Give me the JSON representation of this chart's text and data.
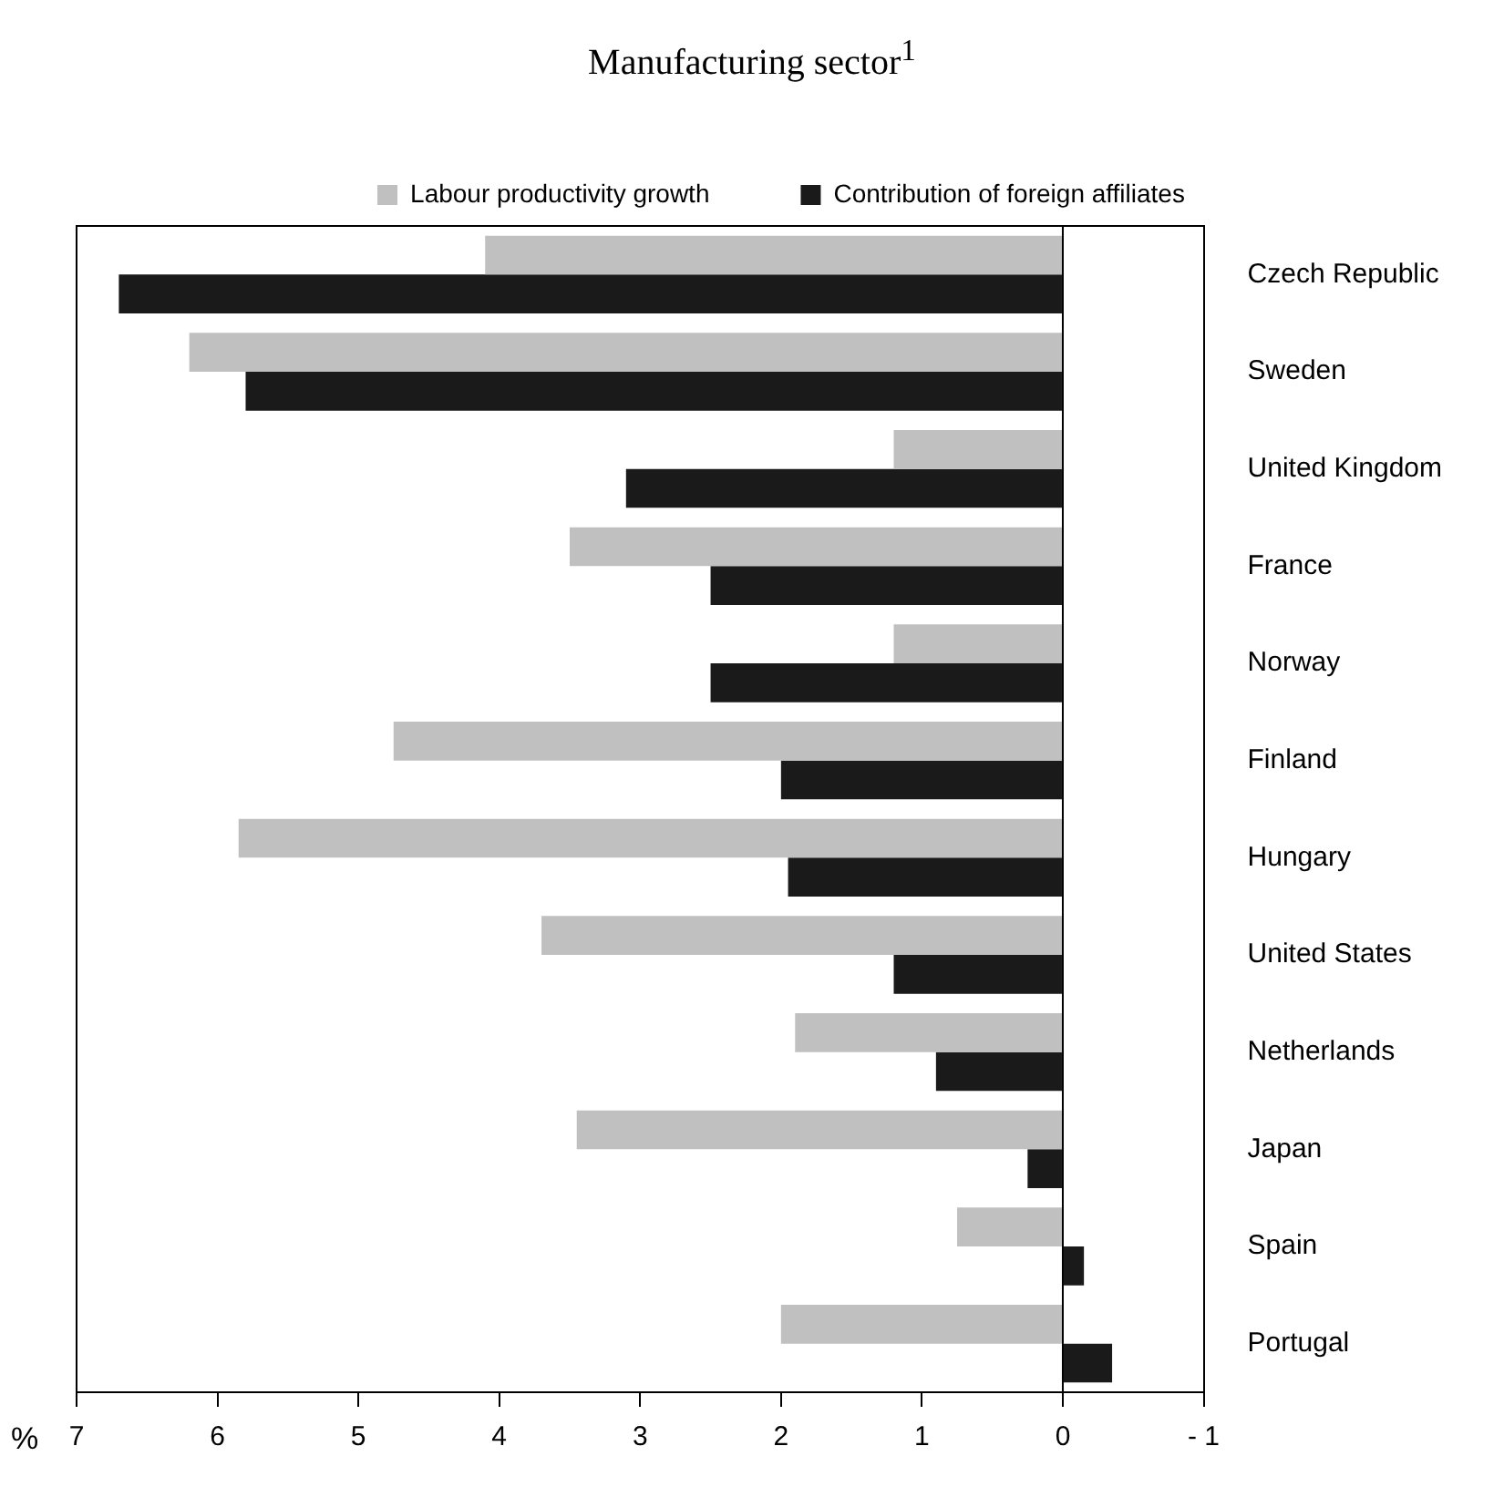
{
  "chart_data": {
    "type": "bar",
    "orientation": "horizontal",
    "title": "Manufacturing sector$^{1}$",
    "xlabel": "%",
    "categories": [
      "Czech Republic",
      "Sweden",
      "United Kingdom",
      "France",
      "Norway",
      "Finland",
      "Hungary",
      "United States",
      "Netherlands",
      "Japan",
      "Spain",
      "Portugal"
    ],
    "series": [
      {
        "name": "Labour productivity growth",
        "color": "#c0c0c0",
        "values": [
          4.1,
          6.2,
          1.2,
          3.5,
          1.2,
          4.75,
          5.85,
          3.7,
          1.9,
          3.45,
          0.75,
          2.0
        ]
      },
      {
        "name": "Contribution of foreign affiliates",
        "color": "#1a1a1a",
        "values": [
          6.7,
          5.8,
          3.1,
          2.5,
          2.5,
          2.0,
          1.95,
          1.2,
          0.9,
          0.25,
          -0.15,
          -0.35
        ]
      }
    ],
    "xlim": [
      7,
      -1
    ],
    "xticks": [
      7,
      6,
      5,
      4,
      3,
      2,
      1,
      0,
      {
        "value": -1,
        "label": "- 1"
      }
    ],
    "ref_lines": [
      {
        "axis": "x",
        "value": 0
      }
    ],
    "legend": "top",
    "grid": false
  }
}
